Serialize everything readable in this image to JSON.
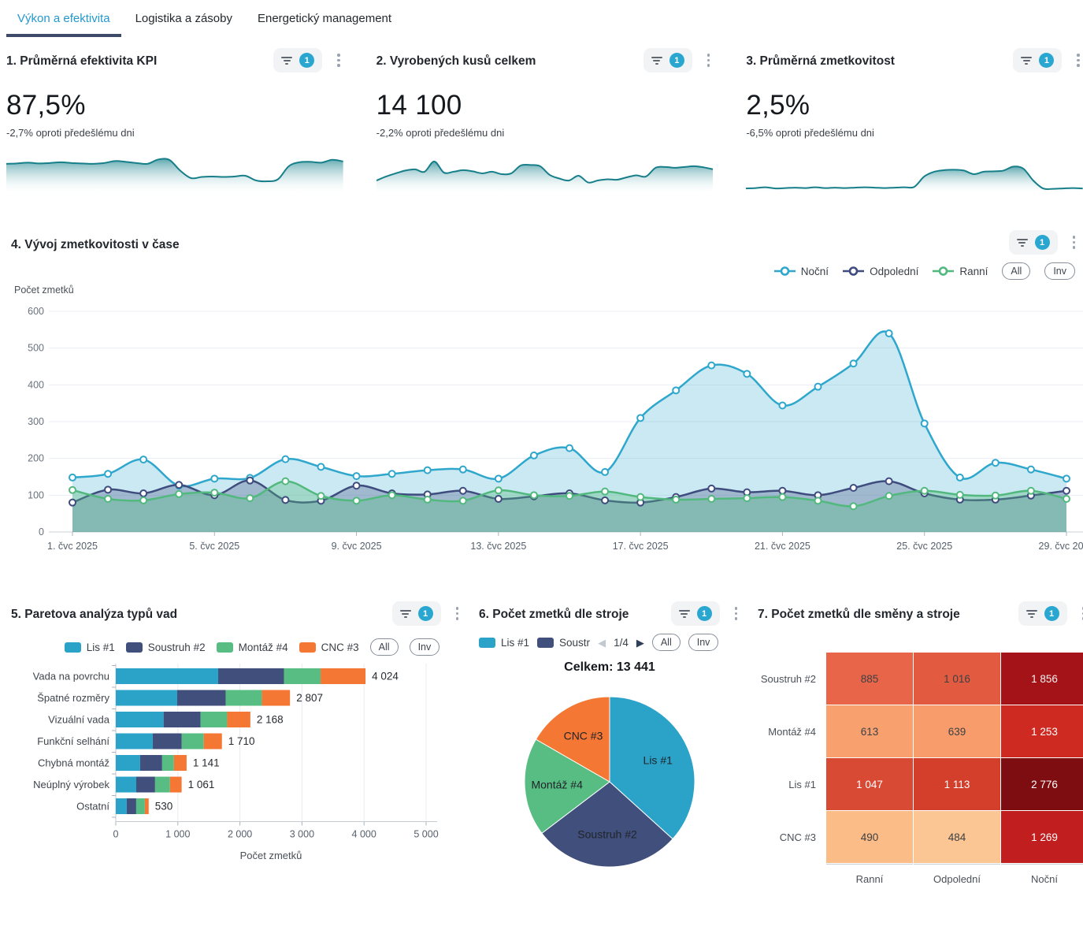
{
  "tabs": {
    "items": [
      {
        "label": "Výkon a efektivita",
        "active": true
      },
      {
        "label": "Logistika a zásoby",
        "active": false
      },
      {
        "label": "Energetický management",
        "active": false
      }
    ]
  },
  "controls": {
    "badge": "1",
    "all_label": "All",
    "inv_label": "Inv"
  },
  "colors": {
    "accent_cyan": "#2aa7d1",
    "tab_active_text": "#2499ce",
    "tab_underline": "#3d4a68",
    "spark_line": "#177f8a",
    "grid_line": "#e9eef3",
    "axis_line": "#c9d0d7",
    "axis_text": "#5a6470"
  },
  "kpi_cards": [
    {
      "title": "1. Průměrná efektivita KPI",
      "value": "87,5%",
      "delta": "-2,7% oproti předešlému dni",
      "spark": [
        0.72,
        0.73,
        0.75,
        0.73,
        0.74,
        0.76,
        0.74,
        0.73,
        0.72,
        0.74,
        0.79,
        0.77,
        0.74,
        0.72,
        0.83,
        0.82,
        0.55,
        0.36,
        0.39,
        0.4,
        0.39,
        0.4,
        0.42,
        0.3,
        0.28,
        0.33,
        0.66,
        0.76,
        0.77,
        0.75,
        0.82,
        0.78
      ]
    },
    {
      "title": "2. Vyrobených kusů celkem",
      "value": "14 100",
      "delta": "-2,2% oproti předešlému dni",
      "spark": [
        0.3,
        0.4,
        0.48,
        0.55,
        0.58,
        0.52,
        0.78,
        0.5,
        0.52,
        0.56,
        0.53,
        0.48,
        0.52,
        0.46,
        0.48,
        0.68,
        0.69,
        0.66,
        0.44,
        0.35,
        0.3,
        0.42,
        0.25,
        0.3,
        0.33,
        0.32,
        0.38,
        0.43,
        0.4,
        0.62,
        0.64,
        0.62,
        0.64,
        0.66,
        0.63,
        0.58
      ]
    },
    {
      "title": "3. Průměrná zmetkovitost",
      "value": "2,5%",
      "delta": "-6,5% oproti předešlému dni",
      "spark": [
        0.1,
        0.11,
        0.13,
        0.1,
        0.11,
        0.12,
        0.11,
        0.13,
        0.11,
        0.12,
        0.11,
        0.12,
        0.13,
        0.12,
        0.11,
        0.12,
        0.13,
        0.14,
        0.4,
        0.52,
        0.56,
        0.57,
        0.55,
        0.46,
        0.52,
        0.53,
        0.55,
        0.65,
        0.6,
        0.3,
        0.1,
        0.09,
        0.1,
        0.11,
        0.1
      ]
    }
  ],
  "trend_chart": {
    "title": "4. Vývoj zmetkovitosti v čase",
    "y_axis_label": "Počet zmetků",
    "chart_data": {
      "type": "line",
      "days": 29,
      "x_tick_indices": [
        0,
        4,
        8,
        12,
        16,
        20,
        24,
        28
      ],
      "x_tick_labels": [
        "1. čvc 2025",
        "5. čvc 2025",
        "9. čvc 2025",
        "13. čvc 2025",
        "17. čvc 2025",
        "21. čvc 2025",
        "25. čvc 2025",
        "29. čvc 2025"
      ],
      "ylim": [
        0,
        600
      ],
      "y_ticks": [
        0,
        100,
        200,
        300,
        400,
        500,
        600
      ],
      "grid": true,
      "legend_position": "top-right",
      "series": [
        {
          "name": "Noční",
          "color": "#2fa7cd",
          "fill_opacity": 0.25,
          "values": [
            148,
            158,
            197,
            126,
            145,
            147,
            198,
            177,
            152,
            158,
            168,
            170,
            145,
            208,
            228,
            163,
            310,
            385,
            453,
            430,
            344,
            395,
            458,
            540,
            295,
            148,
            188,
            170,
            145
          ]
        },
        {
          "name": "Odpolední",
          "color": "#3e4c7e",
          "fill_opacity": 0.3,
          "values": [
            80,
            115,
            105,
            128,
            100,
            140,
            87,
            85,
            126,
            105,
            102,
            112,
            90,
            97,
            105,
            86,
            80,
            95,
            118,
            108,
            112,
            100,
            120,
            138,
            105,
            88,
            88,
            99,
            112
          ]
        },
        {
          "name": "Ranní",
          "color": "#52b97e",
          "fill_opacity": 0.35,
          "values": [
            114,
            90,
            86,
            103,
            107,
            92,
            138,
            98,
            85,
            100,
            88,
            85,
            113,
            100,
            98,
            110,
            95,
            88,
            90,
            92,
            95,
            85,
            70,
            98,
            112,
            101,
            99,
            112,
            90
          ]
        }
      ]
    }
  },
  "pareto_chart": {
    "title": "5. Paretova analýza typů vad",
    "x_axis_label": "Počet zmetků",
    "chart_data": {
      "type": "bar",
      "orientation": "horizontal-stacked",
      "categories": [
        "Vada na povrchu",
        "Špatné rozměry",
        "Vizuální vada",
        "Funkční selhání",
        "Chybná montáž",
        "Neúplný výrobek",
        "Ostatní"
      ],
      "series": [
        {
          "name": "Lis #1",
          "color": "#2ba3c9",
          "values": [
            1650,
            990,
            770,
            595,
            392,
            330,
            177
          ]
        },
        {
          "name": "Soustruh #2",
          "color": "#414f7d",
          "values": [
            1060,
            780,
            595,
            468,
            355,
            303,
            152
          ]
        },
        {
          "name": "Montáž #4",
          "color": "#58bd83",
          "values": [
            590,
            585,
            430,
            355,
            190,
            240,
            139
          ]
        },
        {
          "name": "CNC #3",
          "color": "#f57734",
          "values": [
            724,
            452,
            373,
            292,
            204,
            188,
            62
          ]
        }
      ],
      "totals": [
        4024,
        2807,
        2168,
        1710,
        1141,
        1061,
        530
      ],
      "total_labels": [
        "4 024",
        "2 807",
        "2 168",
        "1 710",
        "1 141",
        "1 061",
        "530"
      ],
      "xlim": [
        0,
        5000
      ],
      "x_ticks": [
        0,
        1000,
        2000,
        3000,
        4000,
        5000
      ],
      "x_tick_labels": [
        "0",
        "1 000",
        "2 000",
        "3 000",
        "4 000",
        "5 000"
      ]
    }
  },
  "pie_chart": {
    "title": "6. Počet zmetků dle stroje",
    "total_label": "Celkem: 13 441",
    "legend": {
      "visible_items": [
        {
          "label": "Lis #1",
          "color": "#2ba3c9"
        },
        {
          "label": "Soustr",
          "color": "#414f7d"
        }
      ],
      "page": "1/4"
    },
    "chart_data": {
      "type": "pie",
      "labels": [
        "Lis #1",
        "Soustruh #2",
        "Montáž #4",
        "CNC #3"
      ],
      "values": [
        4936,
        3757,
        2505,
        2243
      ],
      "colors": [
        "#2ba3c9",
        "#414f7d",
        "#58bd83",
        "#f57734"
      ],
      "total": 13441
    }
  },
  "heatmap": {
    "title": "7. Počet zmetků dle směny a stroje",
    "chart_data": {
      "type": "heatmap",
      "rows": [
        "Soustruh #2",
        "Montáž #4",
        "Lis #1",
        "CNC #3"
      ],
      "cols": [
        "Ranní",
        "Odpolední",
        "Noční"
      ],
      "values": [
        [
          885,
          1016,
          1856
        ],
        [
          613,
          639,
          1253
        ],
        [
          1047,
          1113,
          2776
        ],
        [
          490,
          484,
          1269
        ]
      ],
      "value_labels": [
        [
          "885",
          "1 016",
          "1 856"
        ],
        [
          "613",
          "639",
          "1 253"
        ],
        [
          "1 047",
          "1 113",
          "2 776"
        ],
        [
          "490",
          "484",
          "1 269"
        ]
      ],
      "cell_colors": [
        [
          "#e8654a",
          "#e25b41",
          "#a31318"
        ],
        [
          "#f9a06f",
          "#f89c6b",
          "#ce2a21"
        ],
        [
          "#d94a35",
          "#d43f2b",
          "#7d0d10"
        ],
        [
          "#fbbc87",
          "#fcc594",
          "#c01e1f"
        ]
      ],
      "text_colors": [
        [
          "#3c4043",
          "#3c4043",
          "#f5f3f2"
        ],
        [
          "#3c4043",
          "#3c4043",
          "#ffffff"
        ],
        [
          "#ffffff",
          "#ffffff",
          "#ffffff"
        ],
        [
          "#3c4043",
          "#3c4043",
          "#ffffff"
        ]
      ]
    }
  }
}
